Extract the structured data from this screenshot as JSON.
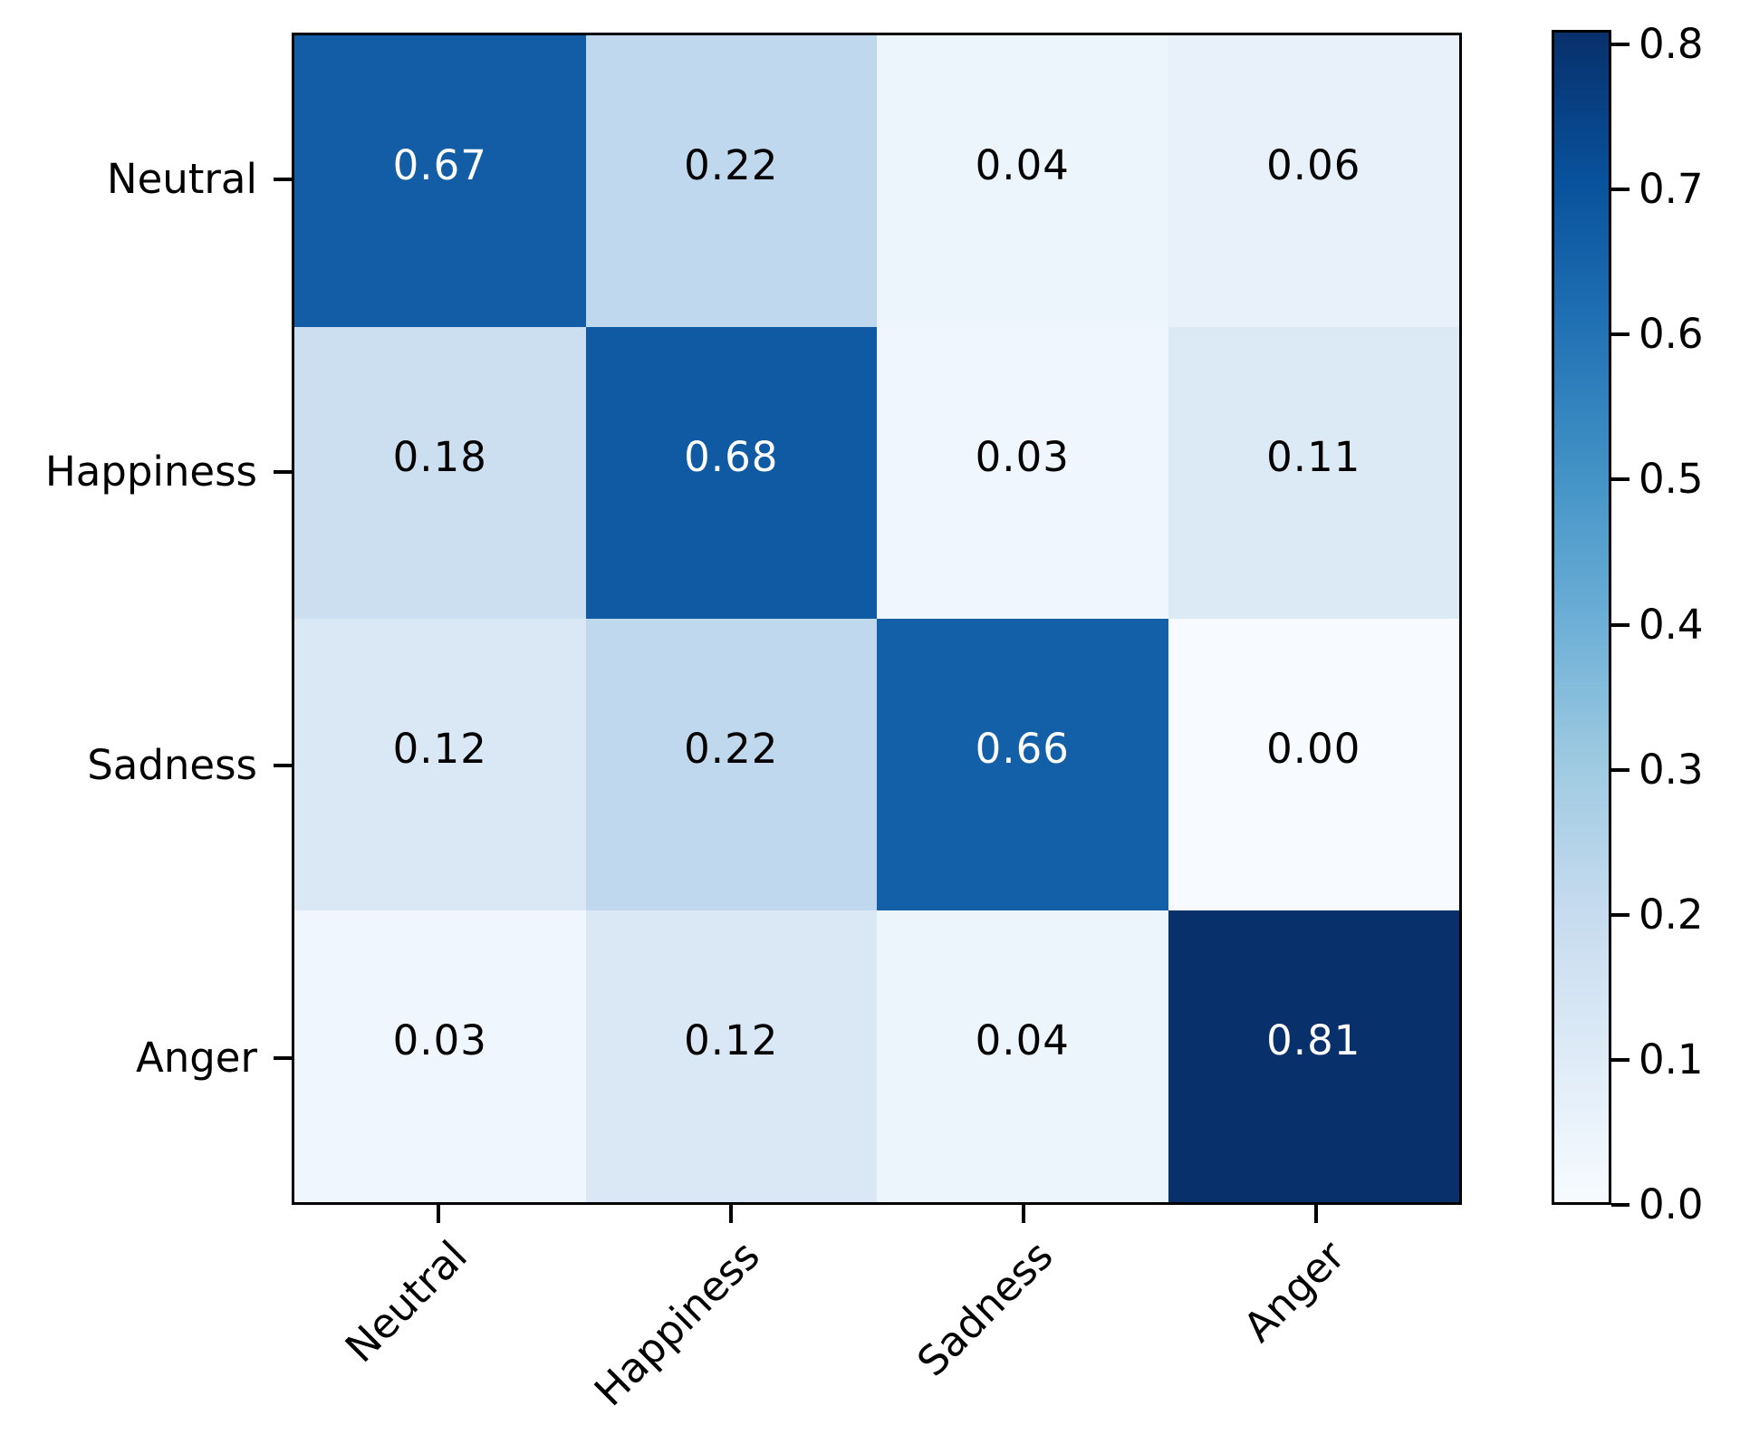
{
  "chart_data": {
    "type": "heatmap",
    "title": "",
    "xlabel": "",
    "ylabel": "",
    "rows": [
      "Neutral",
      "Happiness",
      "Sadness",
      "Anger"
    ],
    "categories": [
      "Neutral",
      "Happiness",
      "Sadness",
      "Anger"
    ],
    "matrix": [
      [
        0.67,
        0.22,
        0.04,
        0.06
      ],
      [
        0.18,
        0.68,
        0.03,
        0.11
      ],
      [
        0.12,
        0.22,
        0.66,
        0.0
      ],
      [
        0.03,
        0.12,
        0.04,
        0.81
      ]
    ],
    "cell_labels": [
      [
        "0.67",
        "0.22",
        "0.04",
        "0.06"
      ],
      [
        "0.18",
        "0.68",
        "0.03",
        "0.11"
      ],
      [
        "0.12",
        "0.22",
        "0.66",
        "0.00"
      ],
      [
        "0.03",
        "0.12",
        "0.04",
        "0.81"
      ]
    ],
    "cell_colors": [
      [
        "#125da6",
        "#bfd8ed",
        "#edf5fc",
        "#e8f1fa"
      ],
      [
        "#cbdff1",
        "#0f5aa3",
        "#f0f6fd",
        "#dceaf6"
      ],
      [
        "#dae8f6",
        "#bfd8ed",
        "#1460a8",
        "#f7fbff"
      ],
      [
        "#f0f6fd",
        "#dae8f6",
        "#edf5fc",
        "#08306b"
      ]
    ],
    "cell_text_colors": [
      [
        "#ffffff",
        "#000000",
        "#000000",
        "#000000"
      ],
      [
        "#000000",
        "#ffffff",
        "#000000",
        "#000000"
      ],
      [
        "#000000",
        "#000000",
        "#ffffff",
        "#000000"
      ],
      [
        "#000000",
        "#000000",
        "#000000",
        "#ffffff"
      ]
    ],
    "colormap": "Blues",
    "vmin": 0.0,
    "vmax": 0.81,
    "grid": false,
    "legend_position": "colorbar-right",
    "colorbar": {
      "tick_labels": [
        "0.8",
        "0.7",
        "0.6",
        "0.5",
        "0.4",
        "0.3",
        "0.2",
        "0.1",
        "0.0"
      ],
      "tick_values": [
        0.8,
        0.7,
        0.6,
        0.5,
        0.4,
        0.3,
        0.2,
        0.1,
        0.0
      ],
      "gradient_bottom_to_top": [
        "#f7fbff",
        "#deebf7",
        "#c6dbef",
        "#9ecae1",
        "#6baed6",
        "#4292c6",
        "#2171b5",
        "#08519c",
        "#08306b"
      ]
    },
    "colors": {
      "axis": "#000000",
      "background": "#ffffff",
      "max_cell": "#08306b",
      "min_cell": "#f7fbff"
    }
  }
}
